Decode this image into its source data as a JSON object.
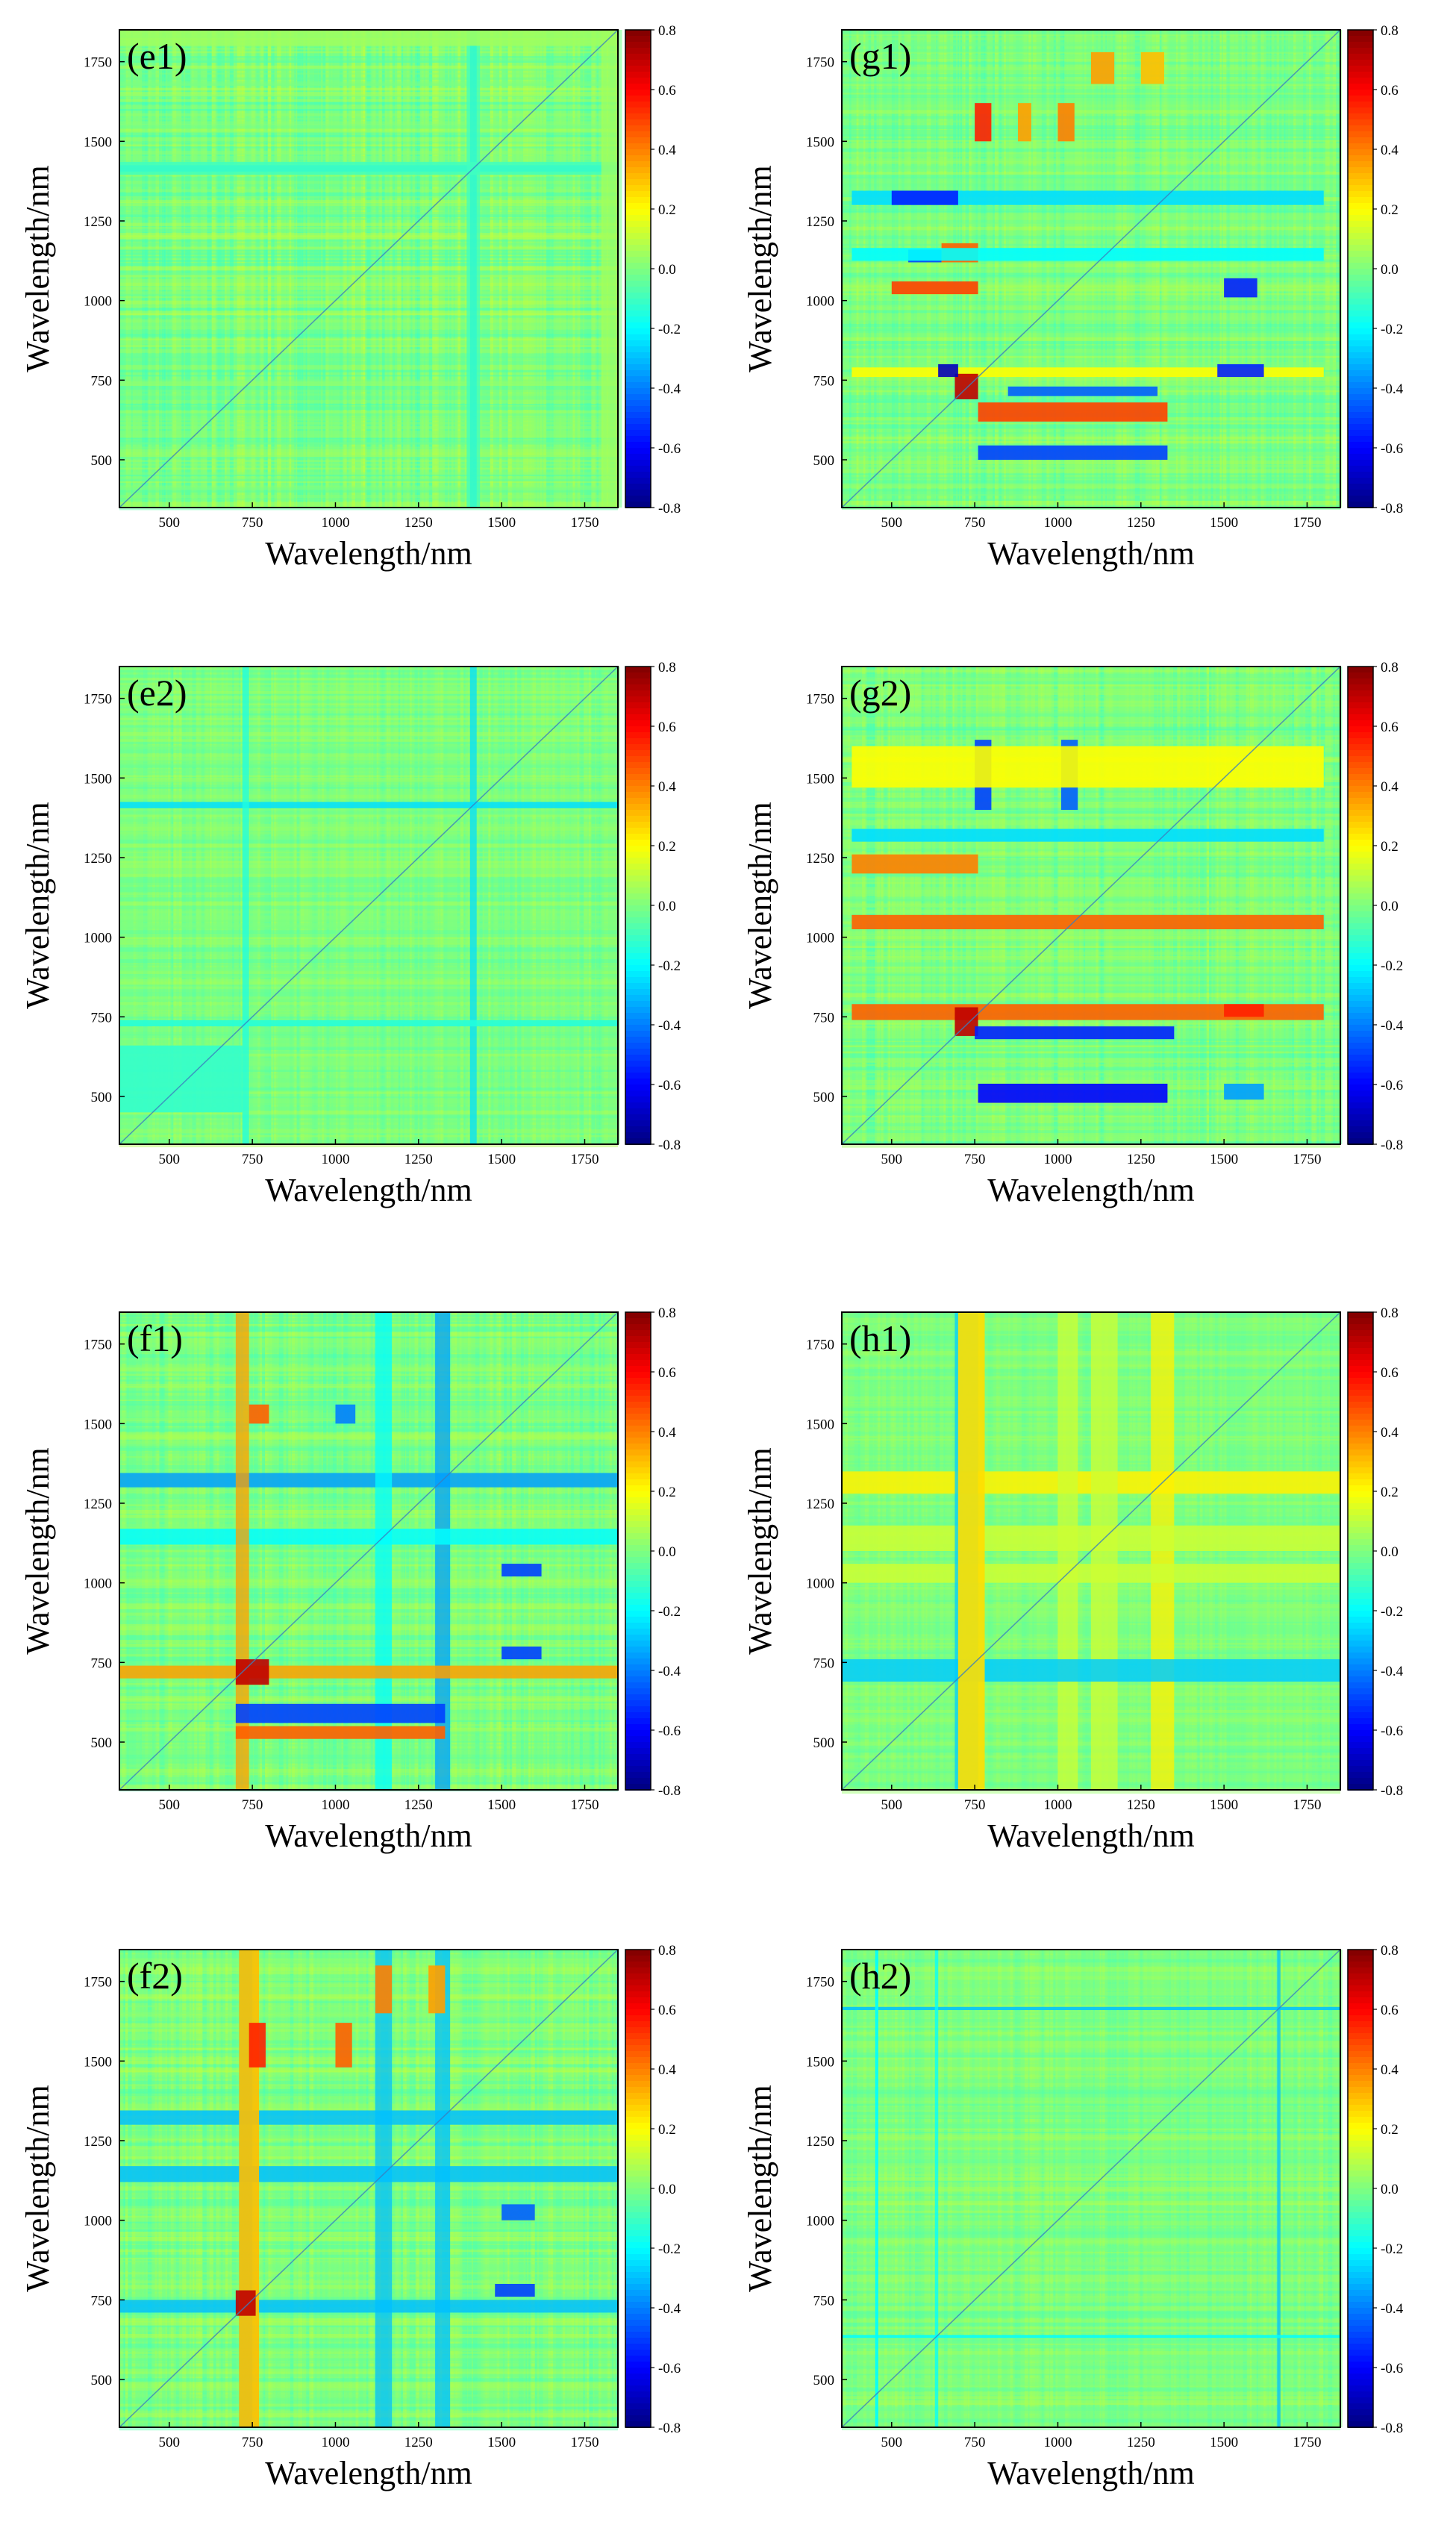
{
  "figure": {
    "colormap": "jet",
    "colormap_stops": [
      "#00007f",
      "#0000ff",
      "#007fff",
      "#00ffff",
      "#7fff7f",
      "#ffff00",
      "#ff7f00",
      "#ff0000",
      "#7f0000"
    ],
    "background_color": "#80ff80"
  },
  "chart_data": [
    {
      "type": "heatmap",
      "label": "(e1)",
      "title": "",
      "xlabel": "Wavelength/nm",
      "ylabel": "Wavelength/nm",
      "xlim": [
        350,
        1850
      ],
      "ylim": [
        350,
        1850
      ],
      "xticks": [
        500,
        750,
        1000,
        1250,
        1500,
        1750
      ],
      "yticks": [
        500,
        750,
        1000,
        1250,
        1500,
        1750
      ],
      "colorbar": {
        "range": [
          -0.8,
          0.8
        ],
        "ticks": [
          "0.8",
          "0.6",
          "0.4",
          "0.2",
          "0.0",
          "-0.2",
          "-0.4",
          "-0.6",
          "-0.8"
        ]
      },
      "variability": 0.12,
      "bands": [
        {
          "from": 1405,
          "to": 1425,
          "value": -0.25
        },
        {
          "from": 1395,
          "to": 1435,
          "value": -0.1
        },
        {
          "from": 1800,
          "to": 1850,
          "value": 0.05
        }
      ],
      "features": []
    },
    {
      "type": "heatmap",
      "label": "(g1)",
      "title": "",
      "xlabel": "Wavelength/nm",
      "ylabel": "Wavelength/nm",
      "xlim": [
        350,
        1850
      ],
      "ylim": [
        350,
        1850
      ],
      "xticks": [
        500,
        750,
        1000,
        1250,
        1500,
        1750
      ],
      "yticks": [
        500,
        750,
        1000,
        1250,
        1500,
        1750
      ],
      "colorbar": {
        "range": [
          -0.8,
          0.8
        ],
        "ticks": [
          "0.8",
          "0.6",
          "0.4",
          "0.2",
          "0.0",
          "-0.2",
          "-0.4",
          "-0.6",
          "-0.8"
        ]
      },
      "variability": 0.1,
      "bands": [],
      "features": [
        {
          "x": [
            750,
            800
          ],
          "y": [
            1500,
            1620
          ],
          "value": 0.55
        },
        {
          "x": [
            880,
            920
          ],
          "y": [
            1500,
            1620
          ],
          "value": 0.35
        },
        {
          "x": [
            1000,
            1050
          ],
          "y": [
            1500,
            1620
          ],
          "value": 0.4
        },
        {
          "x": [
            1100,
            1170
          ],
          "y": [
            1680,
            1780
          ],
          "value": 0.35
        },
        {
          "x": [
            1250,
            1320
          ],
          "y": [
            1680,
            1780
          ],
          "value": 0.3
        },
        {
          "x": [
            380,
            1800
          ],
          "y": [
            1300,
            1345
          ],
          "value": -0.25
        },
        {
          "x": [
            500,
            700
          ],
          "y": [
            1300,
            1345
          ],
          "value": -0.55
        },
        {
          "x": [
            550,
            650
          ],
          "y": [
            1120,
            1160
          ],
          "value": -0.5
        },
        {
          "x": [
            650,
            760
          ],
          "y": [
            1120,
            1180
          ],
          "value": 0.45
        },
        {
          "x": [
            380,
            1800
          ],
          "y": [
            1125,
            1165
          ],
          "value": -0.2
        },
        {
          "x": [
            500,
            760
          ],
          "y": [
            1020,
            1060
          ],
          "value": 0.5
        },
        {
          "x": [
            1500,
            1600
          ],
          "y": [
            1010,
            1070
          ],
          "value": -0.55
        },
        {
          "x": [
            380,
            1800
          ],
          "y": [
            760,
            790
          ],
          "value": 0.2
        },
        {
          "x": [
            690,
            760
          ],
          "y": [
            690,
            770
          ],
          "value": 0.7
        },
        {
          "x": [
            640,
            700
          ],
          "y": [
            760,
            800
          ],
          "value": -0.7
        },
        {
          "x": [
            760,
            1330
          ],
          "y": [
            620,
            680
          ],
          "value": 0.5
        },
        {
          "x": [
            760,
            1330
          ],
          "y": [
            500,
            545
          ],
          "value": -0.5
        },
        {
          "x": [
            1480,
            1620
          ],
          "y": [
            760,
            800
          ],
          "value": -0.55
        },
        {
          "x": [
            850,
            1300
          ],
          "y": [
            700,
            730
          ],
          "value": -0.45
        }
      ]
    },
    {
      "type": "heatmap",
      "label": "(e2)",
      "title": "",
      "xlabel": "Wavelength/nm",
      "ylabel": "Wavelength/nm",
      "xlim": [
        350,
        1850
      ],
      "ylim": [
        350,
        1850
      ],
      "xticks": [
        500,
        750,
        1000,
        1250,
        1500,
        1750
      ],
      "yticks": [
        500,
        750,
        1000,
        1250,
        1500,
        1750
      ],
      "colorbar": {
        "range": [
          -0.8,
          0.8
        ],
        "ticks": [
          "0.8",
          "0.6",
          "0.4",
          "0.2",
          "0.0",
          "-0.2",
          "-0.4",
          "-0.6",
          "-0.8"
        ]
      },
      "variability": 0.08,
      "bands": [
        {
          "from": 1405,
          "to": 1425,
          "value": -0.25
        },
        {
          "from": 720,
          "to": 740,
          "value": -0.15
        }
      ],
      "features": [
        {
          "x": [
            350,
            720
          ],
          "y": [
            450,
            660
          ],
          "value": -0.12
        }
      ]
    },
    {
      "type": "heatmap",
      "label": "(g2)",
      "title": "",
      "xlabel": "Wavelength/nm",
      "ylabel": "Wavelength/nm",
      "xlim": [
        350,
        1850
      ],
      "ylim": [
        350,
        1850
      ],
      "xticks": [
        500,
        750,
        1000,
        1250,
        1500,
        1750
      ],
      "yticks": [
        500,
        750,
        1000,
        1250,
        1500,
        1750
      ],
      "colorbar": {
        "range": [
          -0.8,
          0.8
        ],
        "ticks": [
          "0.8",
          "0.6",
          "0.4",
          "0.2",
          "0.0",
          "-0.2",
          "-0.4",
          "-0.6",
          "-0.8"
        ]
      },
      "variability": 0.1,
      "bands": [],
      "features": [
        {
          "x": [
            750,
            800
          ],
          "y": [
            1400,
            1620
          ],
          "value": -0.5
        },
        {
          "x": [
            1010,
            1060
          ],
          "y": [
            1400,
            1620
          ],
          "value": -0.45
        },
        {
          "x": [
            380,
            1800
          ],
          "y": [
            1470,
            1600
          ],
          "value": 0.2
        },
        {
          "x": [
            380,
            1800
          ],
          "y": [
            1300,
            1340
          ],
          "value": -0.25
        },
        {
          "x": [
            380,
            760
          ],
          "y": [
            1200,
            1260
          ],
          "value": 0.4
        },
        {
          "x": [
            380,
            1800
          ],
          "y": [
            1025,
            1070
          ],
          "value": 0.45
        },
        {
          "x": [
            380,
            1800
          ],
          "y": [
            740,
            790
          ],
          "value": 0.45
        },
        {
          "x": [
            690,
            760
          ],
          "y": [
            690,
            780
          ],
          "value": 0.7
        },
        {
          "x": [
            750,
            1350
          ],
          "y": [
            680,
            720
          ],
          "value": -0.55
        },
        {
          "x": [
            760,
            1330
          ],
          "y": [
            480,
            540
          ],
          "value": -0.6
        },
        {
          "x": [
            1500,
            1620
          ],
          "y": [
            750,
            790
          ],
          "value": 0.55
        },
        {
          "x": [
            1500,
            1620
          ],
          "y": [
            490,
            540
          ],
          "value": -0.35
        }
      ]
    },
    {
      "type": "heatmap",
      "label": "(f1)",
      "title": "",
      "xlabel": "Wavelength/nm",
      "ylabel": "Wavelength/nm",
      "xlim": [
        350,
        1850
      ],
      "ylim": [
        350,
        1850
      ],
      "xticks": [
        500,
        750,
        1000,
        1250,
        1500,
        1750
      ],
      "yticks": [
        500,
        750,
        1000,
        1250,
        1500,
        1750
      ],
      "colorbar": {
        "range": [
          -0.8,
          0.8
        ],
        "ticks": [
          "0.8",
          "0.6",
          "0.4",
          "0.2",
          "0.0",
          "-0.2",
          "-0.4",
          "-0.6",
          "-0.8"
        ]
      },
      "variability": 0.1,
      "bands": [
        {
          "from": 1300,
          "to": 1345,
          "value": -0.35
        },
        {
          "from": 1120,
          "to": 1170,
          "value": -0.2
        },
        {
          "from": 700,
          "to": 740,
          "value": 0.35
        }
      ],
      "features": [
        {
          "x": [
            740,
            800
          ],
          "y": [
            1500,
            1560
          ],
          "value": 0.45
        },
        {
          "x": [
            1000,
            1060
          ],
          "y": [
            1500,
            1560
          ],
          "value": -0.4
        },
        {
          "x": [
            1500,
            1620
          ],
          "y": [
            1020,
            1060
          ],
          "value": -0.5
        },
        {
          "x": [
            700,
            800
          ],
          "y": [
            680,
            760
          ],
          "value": 0.7
        },
        {
          "x": [
            700,
            1330
          ],
          "y": [
            560,
            620
          ],
          "value": -0.5
        },
        {
          "x": [
            700,
            1330
          ],
          "y": [
            510,
            550
          ],
          "value": 0.45
        },
        {
          "x": [
            1500,
            1620
          ],
          "y": [
            760,
            800
          ],
          "value": -0.5
        }
      ]
    },
    {
      "type": "heatmap",
      "label": "(h1)",
      "title": "",
      "xlabel": "Wavelength/nm",
      "ylabel": "Wavelength/nm",
      "xlim": [
        350,
        1850
      ],
      "ylim": [
        350,
        1850
      ],
      "xticks": [
        500,
        750,
        1000,
        1250,
        1500,
        1750
      ],
      "yticks": [
        500,
        750,
        1000,
        1250,
        1500,
        1750
      ],
      "colorbar": {
        "range": [
          -0.8,
          0.8
        ],
        "ticks": [
          "0.8",
          "0.6",
          "0.4",
          "0.2",
          "0.0",
          "-0.2",
          "-0.4",
          "-0.6",
          "-0.8"
        ]
      },
      "variability": 0.06,
      "bands": [
        {
          "from": 1280,
          "to": 1350,
          "value": 0.22
        },
        {
          "from": 1100,
          "to": 1180,
          "value": 0.12
        },
        {
          "from": 1000,
          "to": 1060,
          "value": 0.12
        },
        {
          "from": 690,
          "to": 760,
          "value": -0.28
        }
      ],
      "features": [
        {
          "x": [
            700,
            780
          ],
          "y": [
            350,
            1850
          ],
          "value": 0.25
        }
      ]
    },
    {
      "type": "heatmap",
      "label": "(f2)",
      "title": "",
      "xlabel": "Wavelength/nm",
      "ylabel": "Wavelength/nm",
      "xlim": [
        350,
        1850
      ],
      "ylim": [
        350,
        1850
      ],
      "xticks": [
        500,
        750,
        1000,
        1250,
        1500,
        1750
      ],
      "yticks": [
        500,
        750,
        1000,
        1250,
        1500,
        1750
      ],
      "colorbar": {
        "range": [
          -0.8,
          0.8
        ],
        "ticks": [
          "0.8",
          "0.6",
          "0.4",
          "0.2",
          "0.0",
          "-0.2",
          "-0.4",
          "-0.6",
          "-0.8"
        ]
      },
      "variability": 0.1,
      "bands": [
        {
          "from": 1300,
          "to": 1345,
          "value": -0.3
        },
        {
          "from": 1120,
          "to": 1170,
          "value": -0.3
        },
        {
          "from": 710,
          "to": 750,
          "value": -0.3
        }
      ],
      "features": [
        {
          "x": [
            710,
            770
          ],
          "y": [
            350,
            1850
          ],
          "value": 0.3
        },
        {
          "x": [
            740,
            790
          ],
          "y": [
            1480,
            1620
          ],
          "value": 0.55
        },
        {
          "x": [
            1000,
            1050
          ],
          "y": [
            1480,
            1620
          ],
          "value": 0.45
        },
        {
          "x": [
            1120,
            1170
          ],
          "y": [
            1650,
            1800
          ],
          "value": 0.4
        },
        {
          "x": [
            1280,
            1330
          ],
          "y": [
            1650,
            1800
          ],
          "value": 0.35
        },
        {
          "x": [
            1500,
            1600
          ],
          "y": [
            1000,
            1050
          ],
          "value": -0.45
        },
        {
          "x": [
            1480,
            1600
          ],
          "y": [
            760,
            800
          ],
          "value": -0.5
        },
        {
          "x": [
            700,
            760
          ],
          "y": [
            700,
            780
          ],
          "value": 0.7
        }
      ]
    },
    {
      "type": "heatmap",
      "label": "(h2)",
      "title": "",
      "xlabel": "Wavelength/nm",
      "ylabel": "Wavelength/nm",
      "xlim": [
        350,
        1850
      ],
      "ylim": [
        350,
        1850
      ],
      "xticks": [
        500,
        750,
        1000,
        1250,
        1500,
        1750
      ],
      "yticks": [
        500,
        750,
        1000,
        1250,
        1500,
        1750
      ],
      "colorbar": {
        "range": [
          -0.8,
          0.8
        ],
        "ticks": [
          "0.8",
          "0.6",
          "0.4",
          "0.2",
          "0.0",
          "-0.2",
          "-0.4",
          "-0.6",
          "-0.8"
        ]
      },
      "variability": 0.08,
      "bands": [
        {
          "from": 1660,
          "to": 1670,
          "value": -0.3
        },
        {
          "from": 630,
          "to": 640,
          "value": -0.2
        }
      ],
      "features": [
        {
          "x": [
            450,
            460
          ],
          "y": [
            350,
            1850
          ],
          "value": -0.2
        }
      ]
    }
  ]
}
